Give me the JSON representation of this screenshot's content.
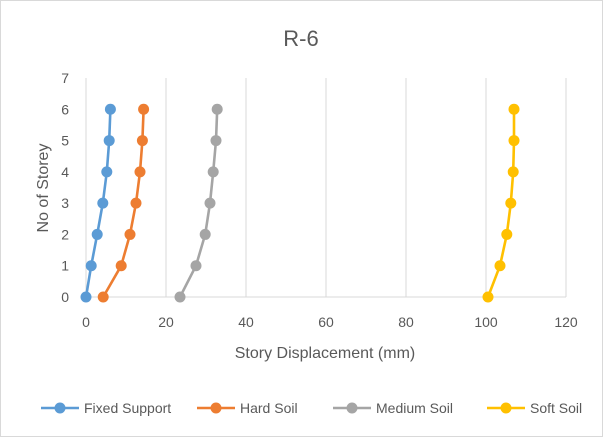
{
  "chart_data": {
    "type": "scatter",
    "title": "R-6",
    "xlabel": "Story Displacement (mm)",
    "ylabel": "No of Storey",
    "xlim": [
      0,
      120
    ],
    "ylim": [
      0,
      7
    ],
    "xticks": [
      0,
      20,
      40,
      60,
      80,
      100,
      120
    ],
    "yticks": [
      0,
      1,
      2,
      3,
      4,
      5,
      6,
      7
    ],
    "grid": "vertical",
    "legend_position": "bottom",
    "series": [
      {
        "name": "Fixed Support",
        "color": "#5B9BD5",
        "points": [
          [
            0,
            0
          ],
          [
            1.3,
            1
          ],
          [
            2.8,
            2
          ],
          [
            4.2,
            3
          ],
          [
            5.2,
            4
          ],
          [
            5.8,
            5
          ],
          [
            6.1,
            6
          ]
        ]
      },
      {
        "name": "Hard Soil",
        "color": "#ED7D31",
        "points": [
          [
            4.3,
            0
          ],
          [
            8.8,
            1
          ],
          [
            11.0,
            2
          ],
          [
            12.5,
            3
          ],
          [
            13.5,
            4
          ],
          [
            14.1,
            5
          ],
          [
            14.4,
            6
          ]
        ]
      },
      {
        "name": "Medium Soil",
        "color": "#A5A5A5",
        "points": [
          [
            23.5,
            0
          ],
          [
            27.5,
            1
          ],
          [
            29.8,
            2
          ],
          [
            31.0,
            3
          ],
          [
            31.8,
            4
          ],
          [
            32.5,
            5
          ],
          [
            32.8,
            6
          ]
        ]
      },
      {
        "name": "Soft Soil",
        "color": "#FFC000",
        "points": [
          [
            100.5,
            0
          ],
          [
            103.5,
            1
          ],
          [
            105.2,
            2
          ],
          [
            106.2,
            3
          ],
          [
            106.8,
            4
          ],
          [
            107.0,
            5
          ],
          [
            107.0,
            6
          ]
        ]
      }
    ]
  }
}
